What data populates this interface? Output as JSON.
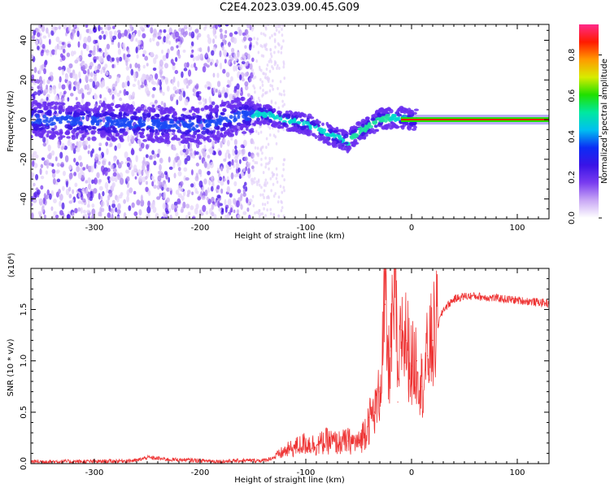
{
  "title": "C2E4.2023.039.00.45.G09",
  "chart_data": [
    {
      "type": "heatmap",
      "xlabel": "Height of straight line (km)",
      "ylabel": "Frequency (Hz)",
      "xlim": [
        -360,
        130
      ],
      "ylim": [
        -50,
        48
      ],
      "xticks": [
        -300,
        -200,
        -100,
        0,
        100
      ],
      "yticks": [
        -40,
        -20,
        0,
        20,
        40
      ],
      "colorbar": {
        "label": "Normalized spectral amplitude",
        "ticks": [
          "0.0",
          "0.2",
          "0.4",
          "0.6",
          "0.8"
        ],
        "range": [
          0,
          0.95
        ],
        "colors": [
          "#ffffff",
          "#c9a8f5",
          "#7a3cf0",
          "#3a14e6",
          "#0b2cf5",
          "#00c0f0",
          "#00e8a0",
          "#20e000",
          "#d8ec00",
          "#ff9a00",
          "#ff1a00",
          "#ff2a8a"
        ]
      },
      "trace": {
        "x": [
          -360,
          -300,
          -250,
          -200,
          -160,
          -140,
          -120,
          -100,
          -80,
          -60,
          -50,
          -40,
          -30,
          -20,
          -10,
          0,
          130
        ],
        "y": [
          0,
          -1,
          -2,
          -3,
          2,
          3,
          0,
          -2,
          -7,
          -11,
          -6,
          -3,
          0,
          1,
          1,
          0,
          0
        ]
      }
    },
    {
      "type": "line",
      "xlabel": "Height of straight line (km)",
      "ylabel": "SNR (10 * v/v)",
      "y_scale_label": "(x10⁴)",
      "xlim": [
        -360,
        130
      ],
      "ylim": [
        0,
        1.9
      ],
      "xticks": [
        -300,
        -200,
        -100,
        0,
        100
      ],
      "yticks": [
        "0.0",
        "0.5",
        "1.0",
        "1.5"
      ],
      "ytick_values": [
        0,
        0.5,
        1.0,
        1.5
      ],
      "series": [
        {
          "color": "#ee3333",
          "x": [
            -360,
            -300,
            -260,
            -250,
            -230,
            -200,
            -180,
            -160,
            -140,
            -130,
            -120,
            -110,
            -100,
            -90,
            -80,
            -70,
            -60,
            -50,
            -45,
            -40,
            -35,
            -30,
            -27,
            -25,
            -22,
            -20,
            -17,
            -15,
            -13,
            -10,
            -5,
            0,
            5,
            10,
            15,
            20,
            25,
            30,
            40,
            50,
            60,
            80,
            100,
            130
          ],
          "y": [
            0.02,
            0.02,
            0.03,
            0.06,
            0.04,
            0.03,
            0.02,
            0.03,
            0.03,
            0.06,
            0.12,
            0.16,
            0.2,
            0.18,
            0.22,
            0.2,
            0.22,
            0.2,
            0.3,
            0.45,
            0.5,
            0.7,
            1.2,
            1.55,
            0.9,
            1.1,
            1.45,
            1.9,
            0.6,
            1.3,
            1.2,
            0.95,
            1.0,
            0.75,
            1.05,
            1.2,
            1.35,
            1.5,
            1.6,
            1.63,
            1.63,
            1.61,
            1.59,
            1.56
          ]
        }
      ]
    }
  ]
}
